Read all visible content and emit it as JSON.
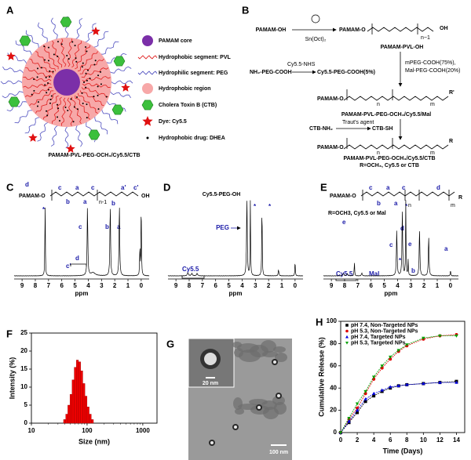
{
  "panels": {
    "A": {
      "label": "A",
      "legend": [
        "PAMAM core",
        "Hydrophobic segment: PVL",
        "Hydrophilic segment: PEG",
        "Hydrophobic region",
        "Cholera Toxin B (CTB)",
        "Dye: Cy5.5",
        "Hydrophobic drug: DHEA"
      ],
      "caption": "PAMAM-PVL-PEG-OCH₃/Cy5.5/CTB"
    },
    "B": {
      "label": "B",
      "texts": [
        "PAMAM-OH",
        "Sn(Oct)₂",
        "PAMAM-O",
        "n−1",
        "OH",
        "PAMAM-PVL-OH",
        "NH₂-PEG-COOH",
        "Cy5.5-NHS",
        "Cy5.5-PEG-COOH(5%)",
        "mPEG-COOH(75%),",
        "Mal-PEG-COOH(20%)",
        "PAMAM-O",
        "n",
        "m",
        "R'",
        "PAMAM-PVL-PEG-OCH₃/Cy5.5/Mal",
        "CTB-NH₂",
        "Traut's agent",
        "CTB-SH",
        "PAMAM-O",
        "n",
        "m",
        "R",
        "PAMAM-PVL-PEG-OCH₃/Cy5.5/CTB",
        "R=OCH₃, Cy5.5 or CTB"
      ]
    },
    "C": {
      "label": "C",
      "structure": [
        "d",
        "PAMAM-O",
        "b",
        "a",
        "c",
        "a",
        "n-1",
        "b",
        "c",
        "a'",
        "c'",
        "OH"
      ],
      "peaks": [
        "*",
        "c",
        "b",
        "a",
        "c'",
        "d"
      ],
      "xlim": [
        9.6,
        -0.6
      ],
      "xticks": [
        9,
        8,
        7,
        6,
        5,
        4,
        3,
        2,
        1,
        0
      ],
      "xlabel": "ppm"
    },
    "D": {
      "label": "D",
      "title": "Cy5.5-PEG-OH",
      "peaks": [
        "PEG",
        "*",
        "*",
        "Cy5.5"
      ],
      "xlim": [
        9.6,
        -0.6
      ],
      "xticks": [
        9,
        8,
        7,
        6,
        5,
        4,
        3,
        2,
        1,
        0
      ],
      "xlabel": "ppm"
    },
    "E": {
      "label": "E",
      "structure": [
        "PAMAM-O",
        "b",
        "a",
        "c",
        "a",
        "c",
        "n",
        "d",
        "m",
        "R",
        "R=OCH3, Cy5.5 or Mal",
        "e"
      ],
      "peaks": [
        "*",
        "d",
        "c",
        "e",
        "*",
        "b",
        "a",
        "Mal",
        "Cy5.5"
      ],
      "xlim": [
        9.6,
        -0.6
      ],
      "xticks": [
        9,
        8,
        7,
        6,
        5,
        4,
        3,
        2,
        1,
        0
      ],
      "xlabel": "ppm"
    },
    "G": {
      "label": "G",
      "scale_labels": [
        "20 nm",
        "100 nm"
      ]
    }
  },
  "chart_data": [
    {
      "type": "histogram",
      "panel_label": "F",
      "xlabel": "Size (nm)",
      "ylabel": "Intensity (%)",
      "bins": [
        37.8,
        41.3,
        45.1,
        49.3,
        53.8,
        58.8,
        64.2,
        70.1,
        76.5,
        83.6,
        91.3,
        99.7,
        108.9,
        118.9,
        129.9
      ],
      "values": [
        1,
        2.5,
        5,
        8,
        12,
        15.5,
        17.5,
        17,
        14.5,
        11,
        7.5,
        4.5,
        2.5,
        1
      ],
      "color": "#ee0000",
      "xscale": "log",
      "xlim": [
        10,
        1800
      ],
      "xticks": [
        10,
        100,
        1000
      ],
      "ylim": [
        0,
        25
      ],
      "yticks": [
        0,
        5,
        10,
        15,
        20,
        25
      ],
      "grid": false
    },
    {
      "type": "line",
      "panel_label": "H",
      "xlabel": "Time (Days)",
      "ylabel": "Cumulative Release (%)",
      "x": [
        0,
        1,
        2,
        3,
        4,
        5,
        6,
        7,
        8,
        10,
        12,
        14
      ],
      "series": [
        {
          "name": "pH 7.4, Non-Targeted NPs",
          "color": "#000000",
          "marker": "square",
          "values": [
            0,
            9,
            18,
            28,
            33,
            37,
            40,
            42,
            43,
            44,
            45,
            46
          ]
        },
        {
          "name": "pH 5.3, Non-Targeted NPs",
          "color": "#e00000",
          "marker": "circle",
          "values": [
            0,
            12,
            22,
            35,
            48,
            58,
            66,
            73,
            78,
            84,
            87,
            88
          ]
        },
        {
          "name": "pH 7.4, Targeted NPs",
          "color": "#0000e0",
          "marker": "triangle",
          "values": [
            0,
            10,
            20,
            30,
            35,
            38,
            41,
            42,
            43,
            44,
            45,
            45
          ]
        },
        {
          "name": "pH 5.3, Targeted NPs",
          "color": "#00a000",
          "marker": "triangle-down",
          "values": [
            0,
            13,
            26,
            37,
            50,
            60,
            68,
            74,
            79,
            85,
            87,
            87
          ]
        }
      ],
      "xlim": [
        0,
        15
      ],
      "xticks": [
        0,
        2,
        4,
        6,
        8,
        10,
        12,
        14
      ],
      "ylim": [
        0,
        100
      ],
      "yticks": [
        0,
        20,
        40,
        60,
        80,
        100
      ],
      "legend_position": "upper left",
      "grid": false
    }
  ]
}
